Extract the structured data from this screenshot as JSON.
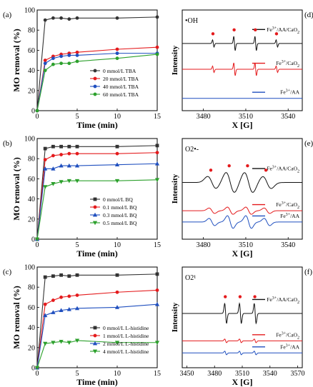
{
  "chart_data": [
    {
      "panel_label": "(a)",
      "type": "line",
      "xlabel": "Time (min)",
      "ylabel": "MO removal (%)",
      "xlim": [
        0,
        15
      ],
      "ylim": [
        0,
        100
      ],
      "x_ticks": [
        0,
        5,
        10,
        15
      ],
      "y_ticks": [
        0,
        20,
        40,
        60,
        80,
        100
      ],
      "x": [
        0,
        1,
        2,
        3,
        4,
        5,
        10,
        15
      ],
      "legend_position": "lower-right",
      "series": [
        {
          "name": "0 mmol/L TBA",
          "color": "#333333",
          "marker": "circle",
          "values": [
            0,
            90,
            92,
            92,
            91,
            92,
            92,
            93
          ]
        },
        {
          "name": "20 mmol/L TBA",
          "color": "#e41a1c",
          "marker": "circle",
          "values": [
            0,
            50,
            54,
            56,
            57,
            58,
            61,
            63
          ]
        },
        {
          "name": "40 mmol/L TBA",
          "color": "#1f4fbf",
          "marker": "circle",
          "values": [
            0,
            47,
            52,
            54,
            55,
            55,
            57,
            57
          ]
        },
        {
          "name": "60 mmol/L TBA",
          "color": "#2ca02c",
          "marker": "circle",
          "values": [
            0,
            40,
            46,
            47,
            47,
            49,
            52,
            56
          ]
        }
      ]
    },
    {
      "panel_label": "(b)",
      "type": "line",
      "xlabel": "Time (min)",
      "ylabel": "MO removal (%)",
      "xlim": [
        0,
        15
      ],
      "ylim": [
        0,
        100
      ],
      "x_ticks": [
        0,
        5,
        10,
        15
      ],
      "y_ticks": [
        0,
        20,
        40,
        60,
        80,
        100
      ],
      "x": [
        0,
        1,
        2,
        3,
        4,
        5,
        10,
        15
      ],
      "legend_position": "lower-right",
      "series": [
        {
          "name": "0 mmol/L BQ",
          "color": "#333333",
          "marker": "square",
          "values": [
            0,
            90,
            92,
            92,
            92,
            92,
            92,
            93
          ]
        },
        {
          "name": "0.1 mmol/L BQ",
          "color": "#e41a1c",
          "marker": "circle",
          "values": [
            0,
            79,
            83,
            84,
            85,
            85,
            85,
            86
          ]
        },
        {
          "name": "0.3 mmol/L BQ",
          "color": "#1f4fbf",
          "marker": "triangle-up",
          "values": [
            0,
            70,
            70,
            73,
            73,
            73,
            74,
            75
          ]
        },
        {
          "name": "0.5 mmol/L BQ",
          "color": "#2ca02c",
          "marker": "triangle-down",
          "values": [
            0,
            52,
            55,
            57,
            58,
            58,
            58,
            59
          ]
        }
      ]
    },
    {
      "panel_label": "(c)",
      "type": "line",
      "xlabel": "Time (min)",
      "ylabel": "MO removal (%)",
      "xlim": [
        0,
        15
      ],
      "ylim": [
        0,
        100
      ],
      "x_ticks": [
        0,
        5,
        10,
        15
      ],
      "y_ticks": [
        0,
        20,
        40,
        60,
        80,
        100
      ],
      "x": [
        0,
        1,
        2,
        3,
        4,
        5,
        10,
        15
      ],
      "legend_position": "lower-right",
      "series": [
        {
          "name": "0 mmol/L L-histidine",
          "color": "#333333",
          "marker": "square",
          "values": [
            0,
            90,
            91,
            92,
            91,
            92,
            92,
            93
          ]
        },
        {
          "name": "1 mmol/L L-histidine",
          "color": "#e41a1c",
          "marker": "circle",
          "values": [
            0,
            63,
            67,
            70,
            71,
            72,
            75,
            77
          ]
        },
        {
          "name": "2 mmol/L L-histidine",
          "color": "#1f4fbf",
          "marker": "triangle-up",
          "values": [
            0,
            52,
            55,
            57,
            58,
            59,
            60,
            63
          ]
        },
        {
          "name": "4 mmol/L L-histidine",
          "color": "#2ca02c",
          "marker": "triangle-down",
          "values": [
            0,
            24,
            25,
            26,
            25,
            27,
            25,
            25
          ]
        }
      ]
    },
    {
      "panel_label": "(d)",
      "species_label": "•OH",
      "type": "line",
      "xlabel": "X [G]",
      "ylabel": "Intensity",
      "xlim": [
        3465,
        3550
      ],
      "x_ticks": [
        3480,
        3510,
        3540
      ],
      "peak_marker_color": "#e41a1c",
      "peak_positions": [
        3487,
        3502,
        3517,
        3532
      ],
      "series": [
        {
          "name": "Fe3+/AA/CaO2",
          "color": "#111111",
          "baseline": 0.78,
          "amplitudes": [
            0.5,
            1.0,
            1.0,
            0.5
          ],
          "halfwidth": 0.5
        },
        {
          "name": "Fe3+/CaO2",
          "color": "#e41a1c",
          "baseline": 0.46,
          "amplitudes": [
            0.5,
            1.0,
            1.0,
            0.5
          ],
          "halfwidth": 0.5
        },
        {
          "name": "Fe3+/AA",
          "color": "#1f4fbf",
          "baseline": 0.1,
          "amplitudes": [
            0,
            0,
            0,
            0
          ],
          "halfwidth": 0.5
        }
      ]
    },
    {
      "panel_label": "(e)",
      "species_label": "O2•-",
      "type": "line",
      "xlabel": "X [G]",
      "ylabel": "Intensity",
      "xlim": [
        3465,
        3550
      ],
      "x_ticks": [
        3480,
        3510,
        3540
      ],
      "peak_marker_color": "#e41a1c",
      "peak_positions": [
        3486,
        3499,
        3512,
        3525
      ],
      "series": [
        {
          "name": "Fe3+/AA/CaO2",
          "color": "#111111",
          "baseline": 0.65,
          "amplitudes": [
            0.6,
            1.0,
            1.0,
            0.6
          ],
          "halfwidth": 3
        },
        {
          "name": "Fe3+/CaO2",
          "color": "#e41a1c",
          "baseline": 0.3,
          "amplitudes": [
            0.3,
            0.4,
            0.4,
            0.3
          ],
          "halfwidth": 2
        },
        {
          "name": "Fe3+/AA",
          "color": "#1f4fbf",
          "baseline": 0.16,
          "amplitudes": [
            0.4,
            0.7,
            0.7,
            0.4
          ],
          "halfwidth": 2
        }
      ]
    },
    {
      "panel_label": "(f)",
      "species_label": "O2¹",
      "type": "line",
      "xlabel": "X [G]",
      "ylabel": "Intensity",
      "xlim": [
        3445,
        3575
      ],
      "x_ticks": [
        3450,
        3480,
        3510,
        3540,
        3570
      ],
      "peak_marker_color": "#e41a1c",
      "peak_positions": [
        3492,
        3508,
        3524
      ],
      "series": [
        {
          "name": "Fe3+/AA/CaO2",
          "color": "#111111",
          "baseline": 0.62,
          "amplitudes": [
            1.0,
            1.0,
            1.0
          ],
          "halfwidth": 1
        },
        {
          "name": "Fe3+/CaO2",
          "color": "#e41a1c",
          "baseline": 0.28,
          "amplitudes": [
            0.2,
            0.2,
            0.2
          ],
          "halfwidth": 1
        },
        {
          "name": "Fe3+/AA",
          "color": "#1f4fbf",
          "baseline": 0.13,
          "amplitudes": [
            0.2,
            0.2,
            0.2
          ],
          "halfwidth": 1
        }
      ]
    }
  ]
}
